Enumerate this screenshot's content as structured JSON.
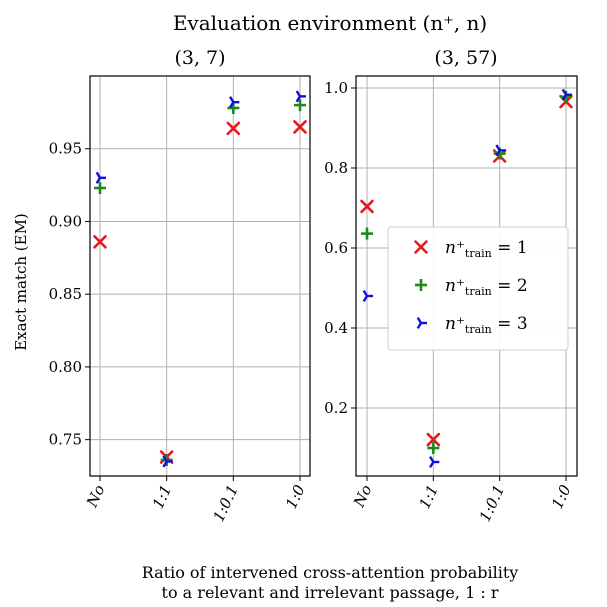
{
  "figure": {
    "suptitle": "Evaluation environment (n⁺, n)",
    "xlabel_line1": "Ratio of intervened cross-attention probability",
    "xlabel_line2": "to a relevant and irrelevant passage, 1 : r",
    "ylabel": "Exact match (EM)"
  },
  "chart_data": [
    {
      "type": "scatter",
      "title": "(3, 7)",
      "categories": [
        "No",
        "1:1",
        "1:0.1",
        "1:0"
      ],
      "ylabel": "Exact match (EM)",
      "ylim": [
        0.725,
        1.0
      ],
      "yticks": [
        0.75,
        0.8,
        0.85,
        0.9,
        0.95
      ],
      "ytick_labels": [
        "0.75",
        "0.80",
        "0.85",
        "0.90",
        "0.95"
      ],
      "grid": true,
      "series": [
        {
          "name": "n⁺train = 1",
          "color": "#e8191c",
          "marker": "x",
          "values": [
            0.886,
            0.738,
            0.964,
            0.965
          ]
        },
        {
          "name": "n⁺train = 2",
          "color": "#1e8a1e",
          "marker": "plus",
          "values": [
            0.923,
            0.736,
            0.978,
            0.98
          ]
        },
        {
          "name": "n⁺train = 3",
          "color": "#1010e0",
          "marker": "tri",
          "values": [
            0.93,
            0.735,
            0.982,
            0.986
          ]
        }
      ]
    },
    {
      "type": "scatter",
      "title": "(3, 57)",
      "categories": [
        "No",
        "1:1",
        "1:0.1",
        "1:0"
      ],
      "ylim": [
        0.03,
        1.03
      ],
      "yticks": [
        0.2,
        0.4,
        0.6,
        0.8,
        1.0
      ],
      "ytick_labels": [
        "0.2",
        "0.4",
        "0.6",
        "0.8",
        "1.0"
      ],
      "grid": true,
      "legend_position": "center-right",
      "series": [
        {
          "name": "n⁺train = 1",
          "color": "#e8191c",
          "marker": "x",
          "values": [
            0.704,
            0.121,
            0.83,
            0.966
          ]
        },
        {
          "name": "n⁺train = 2",
          "color": "#1e8a1e",
          "marker": "plus",
          "values": [
            0.636,
            0.1,
            0.836,
            0.978
          ]
        },
        {
          "name": "n⁺train = 3",
          "color": "#1010e0",
          "marker": "tri",
          "values": [
            0.48,
            0.065,
            0.844,
            0.983
          ]
        }
      ]
    }
  ]
}
